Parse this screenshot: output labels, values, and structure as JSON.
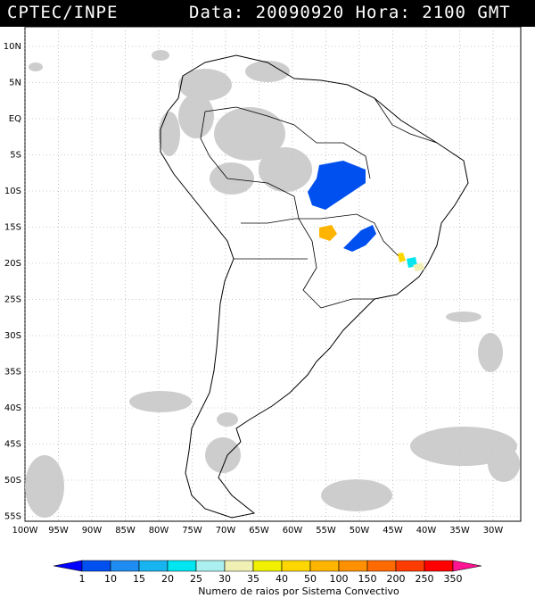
{
  "header": {
    "source": "CPTEC/INPE",
    "datetime": "Data: 20090920 Hora: 2100 GMT"
  },
  "map": {
    "lat_labels": [
      "10N",
      "5N",
      "EQ",
      "5S",
      "10S",
      "15S",
      "20S",
      "25S",
      "30S",
      "35S",
      "40S",
      "45S",
      "50S",
      "55S"
    ],
    "lon_labels": [
      "100W",
      "95W",
      "90W",
      "85W",
      "80W",
      "75W",
      "70W",
      "65W",
      "60W",
      "55W",
      "50W",
      "45W",
      "40W",
      "35W",
      "30W"
    ]
  },
  "legend": {
    "title": "Numero de raios por Sistema Convectivo",
    "values": [
      "1",
      "10",
      "15",
      "20",
      "25",
      "30",
      "35",
      "40",
      "50",
      "100",
      "150",
      "200",
      "250",
      "350"
    ],
    "colors": [
      "#0000ff",
      "#0050f0",
      "#1e8cf0",
      "#18b4f0",
      "#00e6f0",
      "#aaf0f0",
      "#f0f0b4",
      "#f0f000",
      "#ffd700",
      "#ffb400",
      "#ff9100",
      "#ff6a00",
      "#ff3c00",
      "#ff0000",
      "#ff1493"
    ]
  },
  "cells": [
    {
      "color": "#0050f0",
      "label": "blue-cluster-north"
    },
    {
      "color": "#ffb400",
      "label": "orange-cluster-west"
    },
    {
      "color": "#0050f0",
      "label": "blue-cluster-south"
    },
    {
      "color": "#ffd700",
      "label": "yellow-cluster-east"
    }
  ]
}
